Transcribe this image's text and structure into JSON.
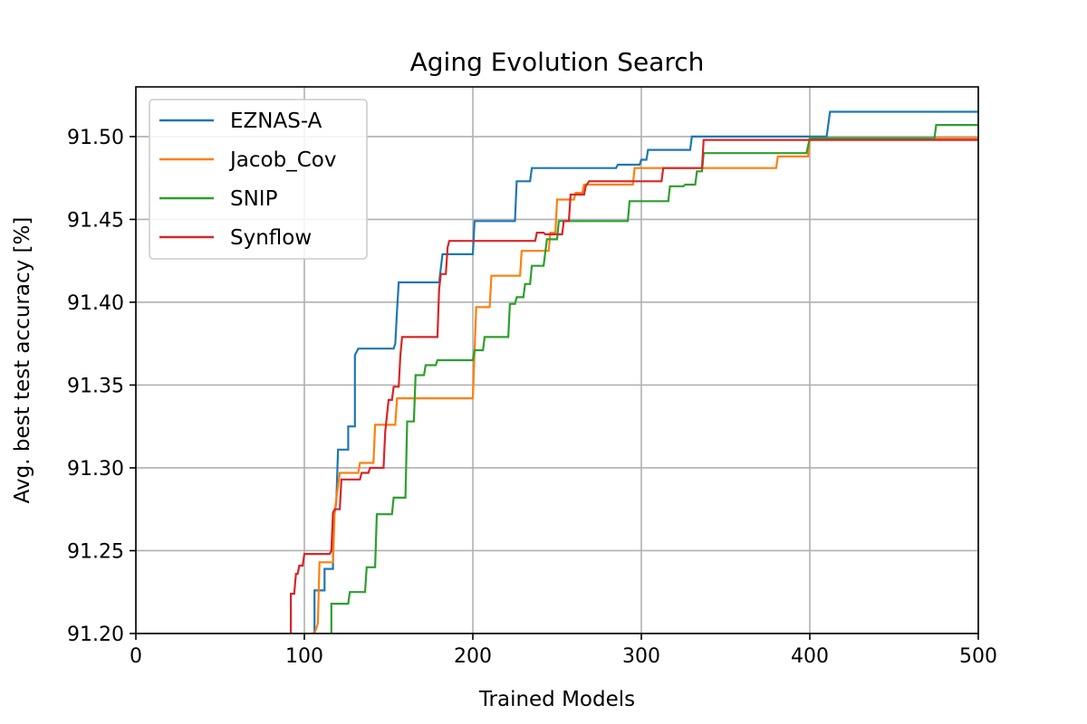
{
  "chart_data": {
    "type": "line",
    "title": "Aging Evolution Search",
    "xlabel": "Trained Models",
    "ylabel": "Avg. best test accuracy [%]",
    "xlim": [
      0,
      500
    ],
    "ylim": [
      91.2,
      91.53
    ],
    "xticks": [
      0,
      100,
      200,
      300,
      400,
      500
    ],
    "xtick_labels": [
      "0",
      "100",
      "200",
      "300",
      "400",
      "500"
    ],
    "yticks": [
      91.2,
      91.25,
      91.3,
      91.35,
      91.4,
      91.45,
      91.5
    ],
    "ytick_labels": [
      "91.20",
      "91.25",
      "91.30",
      "91.35",
      "91.40",
      "91.45",
      "91.50"
    ],
    "grid": true,
    "legend_position": "top-left",
    "series": [
      {
        "name": "EZNAS-A",
        "color": "#1f77b4",
        "points": [
          [
            105,
            91.19
          ],
          [
            105,
            91.2
          ],
          [
            106,
            91.2
          ],
          [
            106,
            91.226
          ],
          [
            112,
            91.226
          ],
          [
            112,
            91.239
          ],
          [
            117,
            91.239
          ],
          [
            117,
            91.265
          ],
          [
            119,
            91.28
          ],
          [
            120,
            91.311
          ],
          [
            126,
            91.311
          ],
          [
            126,
            91.325
          ],
          [
            130,
            91.325
          ],
          [
            130,
            91.368
          ],
          [
            132,
            91.372
          ],
          [
            153,
            91.372
          ],
          [
            154,
            91.375
          ],
          [
            155,
            91.395
          ],
          [
            156,
            91.412
          ],
          [
            180,
            91.412
          ],
          [
            182,
            91.429
          ],
          [
            200,
            91.429
          ],
          [
            201,
            91.449
          ],
          [
            225,
            91.449
          ],
          [
            226,
            91.473
          ],
          [
            234,
            91.473
          ],
          [
            235,
            91.481
          ],
          [
            285,
            91.481
          ],
          [
            286,
            91.483
          ],
          [
            299,
            91.483
          ],
          [
            300,
            91.486
          ],
          [
            303,
            91.486
          ],
          [
            304,
            91.492
          ],
          [
            329,
            91.492
          ],
          [
            330,
            91.5
          ],
          [
            410,
            91.5
          ],
          [
            412,
            91.515
          ],
          [
            500,
            91.515
          ]
        ]
      },
      {
        "name": "Jacob_Cov",
        "color": "#ff7f0e",
        "points": [
          [
            106,
            91.19
          ],
          [
            106,
            91.2
          ],
          [
            108,
            91.206
          ],
          [
            109,
            91.243
          ],
          [
            117,
            91.243
          ],
          [
            118,
            91.274
          ],
          [
            121,
            91.297
          ],
          [
            132,
            91.297
          ],
          [
            133,
            91.303
          ],
          [
            141,
            91.303
          ],
          [
            142,
            91.326
          ],
          [
            154,
            91.326
          ],
          [
            155,
            91.342
          ],
          [
            200,
            91.342
          ],
          [
            202,
            91.397
          ],
          [
            210,
            91.397
          ],
          [
            211,
            91.416
          ],
          [
            228,
            91.416
          ],
          [
            229,
            91.431
          ],
          [
            245,
            91.431
          ],
          [
            246,
            91.442
          ],
          [
            249,
            91.442
          ],
          [
            250,
            91.462
          ],
          [
            260,
            91.462
          ],
          [
            261,
            91.466
          ],
          [
            265,
            91.466
          ],
          [
            266,
            91.471
          ],
          [
            295,
            91.471
          ],
          [
            296,
            91.481
          ],
          [
            380,
            91.481
          ],
          [
            381,
            91.488
          ],
          [
            399,
            91.488
          ],
          [
            400,
            91.499
          ],
          [
            500,
            91.499
          ]
        ]
      },
      {
        "name": "SNIP",
        "color": "#2ca02c",
        "points": [
          [
            116,
            91.19
          ],
          [
            116,
            91.218
          ],
          [
            126,
            91.218
          ],
          [
            127,
            91.225
          ],
          [
            136,
            91.225
          ],
          [
            137,
            91.24
          ],
          [
            142,
            91.24
          ],
          [
            143,
            91.272
          ],
          [
            152,
            91.272
          ],
          [
            153,
            91.282
          ],
          [
            160,
            91.282
          ],
          [
            161,
            91.328
          ],
          [
            165,
            91.328
          ],
          [
            166,
            91.356
          ],
          [
            171,
            91.356
          ],
          [
            172,
            91.362
          ],
          [
            178,
            91.362
          ],
          [
            179,
            91.365
          ],
          [
            200,
            91.365
          ],
          [
            201,
            91.371
          ],
          [
            206,
            91.371
          ],
          [
            207,
            91.379
          ],
          [
            221,
            91.379
          ],
          [
            222,
            91.399
          ],
          [
            225,
            91.399
          ],
          [
            226,
            91.403
          ],
          [
            230,
            91.403
          ],
          [
            231,
            91.411
          ],
          [
            234,
            91.411
          ],
          [
            235,
            91.422
          ],
          [
            242,
            91.422
          ],
          [
            244,
            91.438
          ],
          [
            250,
            91.438
          ],
          [
            251,
            91.449
          ],
          [
            292,
            91.449
          ],
          [
            293,
            91.461
          ],
          [
            316,
            91.461
          ],
          [
            317,
            91.47
          ],
          [
            325,
            91.47
          ],
          [
            326,
            91.471
          ],
          [
            332,
            91.471
          ],
          [
            333,
            91.479
          ],
          [
            336,
            91.479
          ],
          [
            337,
            91.49
          ],
          [
            398,
            91.49
          ],
          [
            400,
            91.499
          ],
          [
            474,
            91.499
          ],
          [
            475,
            91.507
          ],
          [
            500,
            91.507
          ]
        ]
      },
      {
        "name": "Synflow",
        "color": "#d62728",
        "points": [
          [
            92,
            91.19
          ],
          [
            92,
            91.224
          ],
          [
            94,
            91.224
          ],
          [
            95,
            91.236
          ],
          [
            96,
            91.236
          ],
          [
            97,
            91.241
          ],
          [
            99,
            91.241
          ],
          [
            100,
            91.248
          ],
          [
            115,
            91.248
          ],
          [
            116,
            91.25
          ],
          [
            117,
            91.273
          ],
          [
            118,
            91.275
          ],
          [
            121,
            91.275
          ],
          [
            122,
            91.293
          ],
          [
            133,
            91.293
          ],
          [
            134,
            91.297
          ],
          [
            138,
            91.297
          ],
          [
            139,
            91.3
          ],
          [
            147,
            91.3
          ],
          [
            148,
            91.322
          ],
          [
            150,
            91.341
          ],
          [
            152,
            91.341
          ],
          [
            153,
            91.349
          ],
          [
            156,
            91.349
          ],
          [
            157,
            91.368
          ],
          [
            158,
            91.379
          ],
          [
            179,
            91.379
          ],
          [
            180,
            91.408
          ],
          [
            181,
            91.417
          ],
          [
            184,
            91.417
          ],
          [
            185,
            91.433
          ],
          [
            186,
            91.437
          ],
          [
            237,
            91.437
          ],
          [
            238,
            91.442
          ],
          [
            242,
            91.442
          ],
          [
            243,
            91.441
          ],
          [
            253,
            91.441
          ],
          [
            254,
            91.449
          ],
          [
            257,
            91.449
          ],
          [
            258,
            91.465
          ],
          [
            266,
            91.465
          ],
          [
            267,
            91.47
          ],
          [
            269,
            91.473
          ],
          [
            297,
            91.473
          ],
          [
            298,
            91.473
          ],
          [
            312,
            91.473
          ],
          [
            313,
            91.481
          ],
          [
            336,
            91.481
          ],
          [
            337,
            91.498
          ],
          [
            500,
            91.498
          ]
        ]
      }
    ]
  }
}
